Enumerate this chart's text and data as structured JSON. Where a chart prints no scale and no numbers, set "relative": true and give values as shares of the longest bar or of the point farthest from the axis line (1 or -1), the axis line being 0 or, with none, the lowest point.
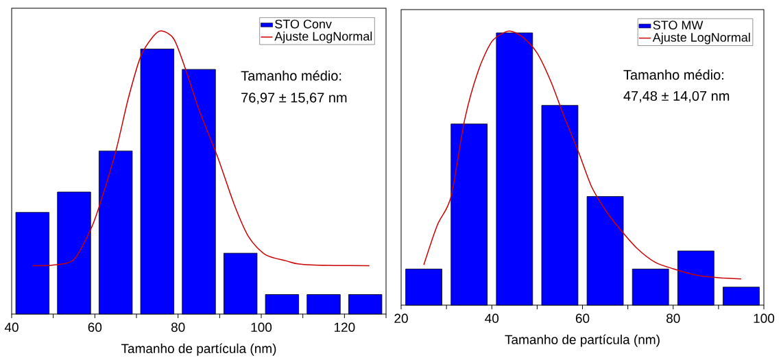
{
  "chart_data": [
    {
      "type": "histogram",
      "relative": true,
      "xlabel": "Tamanho de partícula (nm)",
      "bins": [
        40,
        50,
        60,
        70,
        80,
        90,
        100,
        110,
        120,
        130
      ],
      "xlim": [
        40,
        130
      ],
      "xticks": [
        40,
        {
          "value": 50,
          "label": null
        },
        60,
        {
          "value": 70,
          "label": null
        },
        80,
        {
          "value": 90,
          "label": null
        },
        100,
        {
          "value": 110,
          "label": null
        },
        120,
        {
          "value": 130,
          "label": null
        }
      ],
      "legend": "top right",
      "annotations": [
        "Tamanho médio:",
        "76,97 ± 15,67 nm"
      ],
      "series": [
        {
          "name": "STO Conv",
          "color": "#0000ff",
          "values": [
            0.359,
            0.431,
            0.576,
            0.936,
            0.864,
            0.215,
            0.069,
            0.069,
            0.069
          ]
        },
        {
          "name": "Ajuste LogNormal",
          "type": "line",
          "color": "#cc0000",
          "x": [
            45,
            50,
            55,
            59,
            61,
            65,
            68,
            71,
            74,
            76,
            79,
            82,
            85,
            89.5,
            93.5,
            97,
            101,
            106,
            109,
            116,
            126
          ],
          "values": [
            0.171,
            0.173,
            0.193,
            0.299,
            0.378,
            0.573,
            0.759,
            0.909,
            0.98,
            1.0,
            0.971,
            0.856,
            0.723,
            0.555,
            0.387,
            0.272,
            0.21,
            0.188,
            0.177,
            0.172,
            0.171
          ]
        }
      ]
    },
    {
      "type": "histogram",
      "relative": true,
      "xlabel": "Tamanho de partícula (nm)",
      "bins": [
        20,
        30,
        40,
        50,
        60,
        70,
        80,
        90,
        100
      ],
      "xlim": [
        20,
        100
      ],
      "xticks": [
        20,
        {
          "value": 30,
          "label": null
        },
        40,
        {
          "value": 50,
          "label": null
        },
        60,
        {
          "value": 70,
          "label": null
        },
        80,
        {
          "value": 90,
          "label": null
        },
        100
      ],
      "legend": "top right",
      "annotations": [
        "Tamanho médio:",
        "47,48 ± 14,07 nm"
      ],
      "series": [
        {
          "name": "STO MW",
          "color": "#0000ff",
          "values": [
            0.132,
            0.662,
            0.995,
            0.73,
            0.397,
            0.132,
            0.198,
            0.066
          ]
        },
        {
          "name": "Ajuste LogNormal",
          "type": "line",
          "color": "#cc0000",
          "x": [
            25,
            28,
            31,
            34,
            37,
            40,
            43,
            44.5,
            47,
            50,
            53,
            56,
            59,
            62,
            65,
            68,
            72,
            76,
            80,
            85,
            90,
            95
          ],
          "values": [
            0.147,
            0.293,
            0.396,
            0.677,
            0.856,
            0.963,
            0.998,
            1.0,
            0.977,
            0.921,
            0.818,
            0.687,
            0.565,
            0.433,
            0.349,
            0.283,
            0.208,
            0.157,
            0.133,
            0.11,
            0.1,
            0.096
          ]
        }
      ]
    }
  ]
}
